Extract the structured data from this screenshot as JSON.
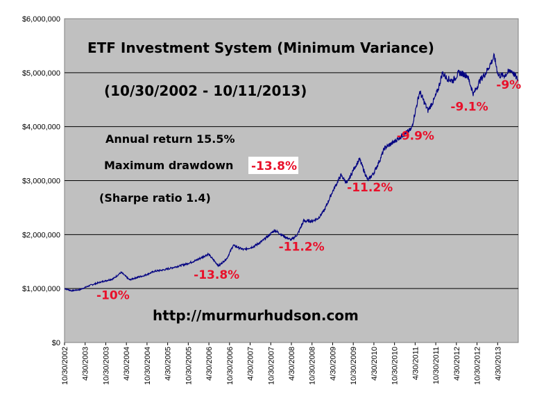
{
  "chart_data": {
    "type": "line",
    "title": "ETF Investment System (Minimum Variance)",
    "subtitle": "(10/30/2002 - 10/11/2013)",
    "stats": {
      "annual_return": "Annual return 15.5%",
      "max_drawdown_label": "Maximum drawdown",
      "max_drawdown_value": "-13.8%",
      "sharpe": "(Sharpe ratio 1.4)"
    },
    "url": "http://murmurhudson.com",
    "ylim": [
      0,
      6000000
    ],
    "xlim": [
      "10/30/2002",
      "10/11/2013"
    ],
    "y_ticks": [
      "$0",
      "$1,000,000",
      "$2,000,000",
      "$3,000,000",
      "$4,000,000",
      "$5,000,000",
      "$6,000,000"
    ],
    "x_ticks": [
      "10/30/2002",
      "4/30/2003",
      "10/30/2003",
      "4/30/2004",
      "10/30/2004",
      "4/30/2005",
      "10/30/2005",
      "4/30/2006",
      "10/30/2006",
      "4/30/2007",
      "10/30/2007",
      "4/30/2008",
      "10/30/2008",
      "4/30/2009",
      "10/30/2009",
      "4/30/2010",
      "10/30/2010",
      "4/30/2011",
      "10/30/2011",
      "4/30/2012",
      "10/30/2012",
      "4/30/2013"
    ],
    "grid": "horizontal",
    "colors": {
      "plot_bg": "#c0c0c0",
      "line": "#000080",
      "annotation": "#e8102a"
    },
    "series": [
      {
        "x": [
          2002.83,
          2003.0,
          2003.2,
          2003.45,
          2003.7,
          2004.0,
          2004.2,
          2004.4,
          2004.55,
          2004.75,
          2005.0,
          2005.25,
          2005.5,
          2005.75,
          2006.0,
          2006.3,
          2006.55,
          2006.75,
          2006.9,
          2007.15,
          2007.4,
          2007.6,
          2007.9,
          2008.1,
          2008.3,
          2008.45,
          2008.6,
          2008.8,
          2008.95,
          2009.1,
          2009.3,
          2009.5,
          2009.65,
          2009.8,
          2009.95,
          2010.15,
          2010.3,
          2010.45,
          2010.55,
          2010.75,
          2011.0,
          2011.2,
          2011.4,
          2011.6,
          2011.75,
          2011.85,
          2011.95,
          2012.05,
          2012.2,
          2012.35,
          2012.55,
          2012.7,
          2012.85,
          2013.0,
          2013.2,
          2013.3,
          2013.45,
          2013.6,
          2013.7,
          2013.78
        ],
        "y": [
          1000000,
          960000,
          980000,
          1060000,
          1120000,
          1180000,
          1300000,
          1160000,
          1200000,
          1240000,
          1320000,
          1350000,
          1400000,
          1450000,
          1520000,
          1640000,
          1420000,
          1560000,
          1800000,
          1720000,
          1780000,
          1880000,
          2080000,
          1980000,
          1900000,
          2000000,
          2250000,
          2250000,
          2300000,
          2450000,
          2800000,
          3100000,
          2950000,
          3200000,
          3400000,
          3000000,
          3150000,
          3400000,
          3600000,
          3700000,
          3850000,
          3950000,
          4650000,
          4300000,
          4500000,
          4700000,
          5000000,
          4900000,
          4850000,
          5000000,
          4950000,
          4600000,
          4850000,
          5000000,
          5300000,
          4950000,
          4950000,
          5050000,
          4950000,
          4850000
        ]
      }
    ],
    "drawdown_labels": [
      {
        "text": "-10%",
        "x": 2004.0,
        "y": 800000
      },
      {
        "text": "-13.8%",
        "x": 2006.5,
        "y": 1180000
      },
      {
        "text": "-11.2%",
        "x": 2008.55,
        "y": 1700000
      },
      {
        "text": "-11.2%",
        "x": 2010.2,
        "y": 2800000
      },
      {
        "text": "-9.9%",
        "x": 2011.3,
        "y": 3760000
      },
      {
        "text": "-9.1%",
        "x": 2012.6,
        "y": 4300000
      },
      {
        "text": "-9%",
        "x": 2013.55,
        "y": 4700000
      }
    ]
  }
}
